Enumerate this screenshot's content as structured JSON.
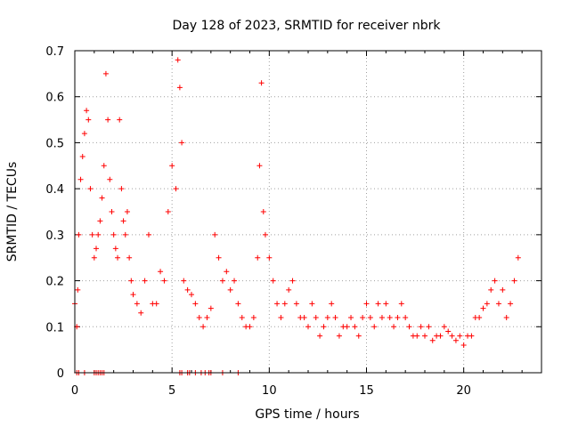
{
  "chart_data": {
    "type": "scatter",
    "title": "Day 128 of 2023, SRMTID for receiver nbrk",
    "xlabel": "GPS time / hours",
    "ylabel": "SRMTID / TECUs",
    "xlim": [
      0,
      24
    ],
    "ylim": [
      0,
      0.7
    ],
    "x_ticks": [
      0,
      5,
      10,
      15,
      20
    ],
    "x_tick_labels": [
      "0",
      "5",
      "10",
      "15",
      "20"
    ],
    "y_ticks": [
      0,
      0.1,
      0.2,
      0.3,
      0.4,
      0.5,
      0.6,
      0.7
    ],
    "y_tick_labels": [
      "0",
      "0.1",
      "0.2",
      "0.3",
      "0.4",
      "0.5",
      "0.6",
      "0.7"
    ],
    "grid": true,
    "marker": "plus",
    "series": [
      {
        "name": "SRMTID",
        "color": "#ff0000",
        "x": [
          0.0,
          0.1,
          0.15,
          0.2,
          0.3,
          0.4,
          0.5,
          0.6,
          0.7,
          0.8,
          0.9,
          1.0,
          1.1,
          1.2,
          1.3,
          1.4,
          1.5,
          1.6,
          1.7,
          1.8,
          1.9,
          2.0,
          2.1,
          2.2,
          2.3,
          2.4,
          2.5,
          2.6,
          2.7,
          2.8,
          2.9,
          3.0,
          3.2,
          3.4,
          3.6,
          3.8,
          4.0,
          4.2,
          4.4,
          4.6,
          4.8,
          5.0,
          5.2,
          5.3,
          5.4,
          5.5,
          5.6,
          5.8,
          6.0,
          6.2,
          6.4,
          6.6,
          6.8,
          7.0,
          7.2,
          7.4,
          7.6,
          7.8,
          8.0,
          8.2,
          8.4,
          8.6,
          8.8,
          9.0,
          9.2,
          9.4,
          9.5,
          9.6,
          9.7,
          9.8,
          10.0,
          10.2,
          10.4,
          10.6,
          10.8,
          11.0,
          11.2,
          11.4,
          11.6,
          11.8,
          12.0,
          12.2,
          12.4,
          12.6,
          12.8,
          13.0,
          13.2,
          13.4,
          13.6,
          13.8,
          14.0,
          14.2,
          14.4,
          14.6,
          14.8,
          15.0,
          15.2,
          15.4,
          15.6,
          15.8,
          16.0,
          16.2,
          16.4,
          16.6,
          16.8,
          17.0,
          17.2,
          17.4,
          17.6,
          17.8,
          18.0,
          18.2,
          18.4,
          18.6,
          18.8,
          19.0,
          19.2,
          19.4,
          19.6,
          19.8,
          20.0,
          20.2,
          20.4,
          20.6,
          20.8,
          21.0,
          21.2,
          21.4,
          21.6,
          21.8,
          22.0,
          22.2,
          22.4,
          22.6,
          22.8
        ],
        "y": [
          0.15,
          0.1,
          0.18,
          0.3,
          0.42,
          0.47,
          0.52,
          0.57,
          0.55,
          0.4,
          0.3,
          0.25,
          0.27,
          0.3,
          0.33,
          0.38,
          0.45,
          0.65,
          0.55,
          0.42,
          0.35,
          0.3,
          0.27,
          0.25,
          0.55,
          0.4,
          0.33,
          0.3,
          0.35,
          0.25,
          0.2,
          0.17,
          0.15,
          0.13,
          0.2,
          0.3,
          0.15,
          0.15,
          0.22,
          0.2,
          0.35,
          0.45,
          0.4,
          0.68,
          0.62,
          0.5,
          0.2,
          0.18,
          0.17,
          0.15,
          0.12,
          0.1,
          0.12,
          0.14,
          0.3,
          0.25,
          0.2,
          0.22,
          0.18,
          0.2,
          0.15,
          0.12,
          0.1,
          0.1,
          0.12,
          0.25,
          0.45,
          0.63,
          0.35,
          0.3,
          0.25,
          0.2,
          0.15,
          0.12,
          0.15,
          0.18,
          0.2,
          0.15,
          0.12,
          0.12,
          0.1,
          0.15,
          0.12,
          0.08,
          0.1,
          0.12,
          0.15,
          0.12,
          0.08,
          0.1,
          0.1,
          0.12,
          0.1,
          0.08,
          0.12,
          0.15,
          0.12,
          0.1,
          0.15,
          0.12,
          0.15,
          0.12,
          0.1,
          0.12,
          0.15,
          0.12,
          0.1,
          0.08,
          0.08,
          0.1,
          0.08,
          0.1,
          0.07,
          0.08,
          0.08,
          0.1,
          0.09,
          0.08,
          0.07,
          0.08,
          0.06,
          0.08,
          0.08,
          0.12,
          0.12,
          0.14,
          0.15,
          0.18,
          0.2,
          0.15,
          0.18,
          0.12,
          0.15,
          0.2,
          0.25
        ],
        "zero_markers_x": [
          0.1,
          0.2,
          0.5,
          1.0,
          1.1,
          1.2,
          1.3,
          1.4,
          1.5,
          5.4,
          5.5,
          5.8,
          5.9,
          6.2,
          6.5,
          6.7,
          6.9,
          7.0,
          7.6,
          8.4
        ]
      }
    ]
  }
}
